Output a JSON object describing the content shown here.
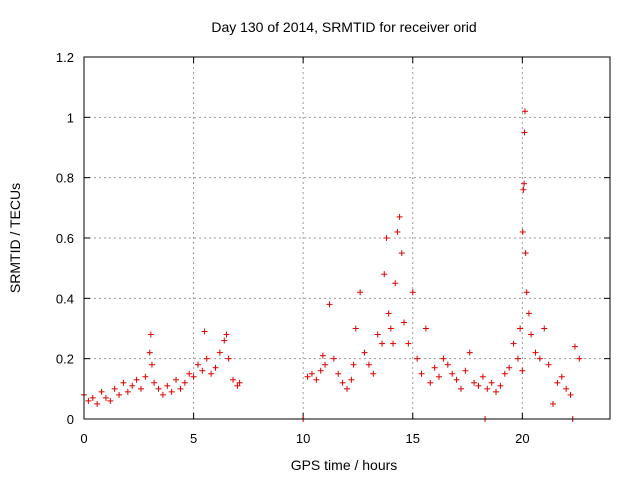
{
  "chart_data": {
    "type": "scatter",
    "title": "Day 130 of 2014, SRMTID for receiver orid",
    "xlabel": "GPS time / hours",
    "ylabel": "SRMTID / TECUs",
    "xlim": [
      0,
      24
    ],
    "ylim": [
      0,
      1.2
    ],
    "x_ticks": [
      0,
      5,
      10,
      15,
      20
    ],
    "x_tick_labels": [
      "0",
      "5",
      "10",
      "15",
      "20"
    ],
    "y_ticks": [
      0,
      0.2,
      0.4,
      0.6,
      0.8,
      1.0,
      1.2
    ],
    "y_tick_labels": [
      "0",
      "0.2",
      "0.4",
      "0.6",
      "0.8",
      "1",
      "1.2"
    ],
    "grid": true,
    "marker": "+",
    "color": "#e00000",
    "series": [
      {
        "name": "SRMTID",
        "x": [
          0.0,
          0.2,
          0.4,
          0.6,
          0.8,
          1.0,
          1.2,
          1.4,
          1.6,
          1.8,
          2.0,
          2.2,
          2.4,
          2.6,
          2.8,
          3.0,
          3.05,
          3.1,
          3.2,
          3.4,
          3.6,
          3.8,
          4.0,
          4.2,
          4.4,
          4.6,
          4.8,
          5.0,
          5.2,
          5.4,
          5.5,
          5.6,
          5.8,
          6.0,
          6.2,
          6.4,
          6.5,
          6.6,
          6.8,
          7.0,
          7.1,
          10.0,
          10.2,
          10.4,
          10.6,
          10.8,
          10.9,
          11.0,
          11.2,
          11.4,
          11.6,
          11.8,
          12.0,
          12.2,
          12.3,
          12.4,
          12.6,
          12.8,
          13.0,
          13.2,
          13.4,
          13.6,
          13.7,
          13.8,
          13.9,
          14.0,
          14.1,
          14.2,
          14.3,
          14.4,
          14.5,
          14.6,
          14.8,
          15.0,
          15.2,
          15.4,
          15.6,
          15.8,
          16.0,
          16.2,
          16.4,
          16.6,
          16.8,
          17.0,
          17.2,
          17.4,
          17.6,
          17.8,
          18.0,
          18.2,
          18.3,
          18.4,
          18.6,
          18.8,
          19.0,
          19.2,
          19.4,
          19.6,
          19.8,
          19.9,
          20.0,
          20.02,
          20.05,
          20.08,
          20.1,
          20.12,
          20.15,
          20.2,
          20.3,
          20.4,
          20.6,
          20.8,
          21.0,
          21.2,
          21.4,
          21.6,
          21.8,
          22.0,
          22.2,
          22.3,
          22.4,
          22.6
        ],
        "y": [
          0.08,
          0.06,
          0.07,
          0.05,
          0.09,
          0.07,
          0.06,
          0.1,
          0.08,
          0.12,
          0.09,
          0.11,
          0.13,
          0.1,
          0.14,
          0.22,
          0.28,
          0.18,
          0.12,
          0.1,
          0.08,
          0.11,
          0.09,
          0.13,
          0.1,
          0.12,
          0.15,
          0.14,
          0.18,
          0.16,
          0.29,
          0.2,
          0.15,
          0.17,
          0.22,
          0.26,
          0.28,
          0.2,
          0.13,
          0.11,
          0.12,
          0.0,
          0.14,
          0.15,
          0.13,
          0.16,
          0.21,
          0.18,
          0.38,
          0.2,
          0.15,
          0.12,
          0.1,
          0.13,
          0.18,
          0.3,
          0.42,
          0.22,
          0.18,
          0.15,
          0.28,
          0.25,
          0.48,
          0.6,
          0.35,
          0.3,
          0.25,
          0.45,
          0.62,
          0.67,
          0.55,
          0.32,
          0.25,
          0.42,
          0.2,
          0.15,
          0.3,
          0.12,
          0.17,
          0.14,
          0.2,
          0.18,
          0.15,
          0.13,
          0.1,
          0.16,
          0.22,
          0.12,
          0.11,
          0.14,
          0.0,
          0.1,
          0.12,
          0.09,
          0.11,
          0.15,
          0.17,
          0.25,
          0.2,
          0.3,
          0.16,
          0.62,
          0.76,
          0.78,
          0.95,
          1.02,
          0.55,
          0.42,
          0.35,
          0.28,
          0.22,
          0.2,
          0.3,
          0.18,
          0.05,
          0.12,
          0.14,
          0.1,
          0.08,
          0.0,
          0.24,
          0.2
        ]
      }
    ]
  }
}
